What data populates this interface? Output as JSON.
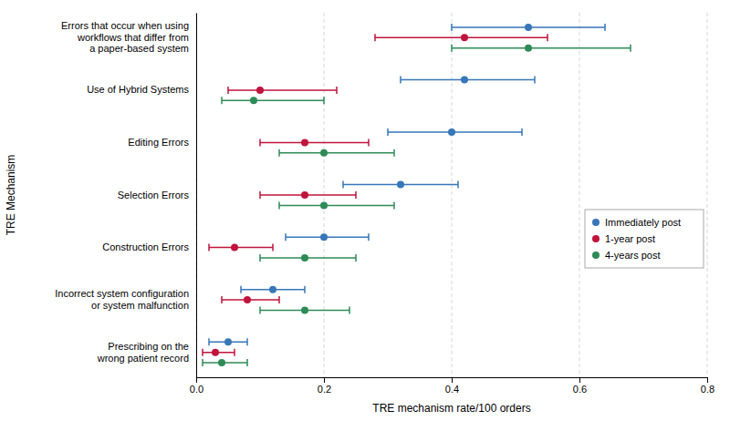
{
  "chart_data": {
    "type": "dot",
    "categories": [
      "Errors that occur when using\nworkflows that differ from\na paper-based system",
      "Use of Hybrid Systems",
      "Editing Errors",
      "Selection Errors",
      "Construction Errors",
      "Incorrect system configuration\nor system malfunction",
      "Prescribing on the\nwrong patient record"
    ],
    "series": [
      {
        "name": "Immediately post",
        "color": "#3777B8",
        "values": [
          0.52,
          0.42,
          0.4,
          0.32,
          0.2,
          0.12,
          0.05
        ],
        "ci_low": [
          0.4,
          0.32,
          0.3,
          0.23,
          0.14,
          0.07,
          0.02
        ],
        "ci_high": [
          0.64,
          0.53,
          0.51,
          0.41,
          0.27,
          0.17,
          0.08
        ]
      },
      {
        "name": "1-year post",
        "color": "#C0143C",
        "values": [
          0.42,
          0.1,
          0.17,
          0.17,
          0.06,
          0.08,
          0.03
        ],
        "ci_low": [
          0.28,
          0.05,
          0.1,
          0.1,
          0.02,
          0.04,
          0.01
        ],
        "ci_high": [
          0.55,
          0.22,
          0.27,
          0.25,
          0.12,
          0.13,
          0.06
        ]
      },
      {
        "name": "4-years post",
        "color": "#2E8B57",
        "values": [
          0.52,
          0.09,
          0.2,
          0.2,
          0.17,
          0.17,
          0.04
        ],
        "ci_low": [
          0.4,
          0.04,
          0.13,
          0.13,
          0.1,
          0.1,
          0.01
        ],
        "ci_high": [
          0.68,
          0.2,
          0.31,
          0.31,
          0.25,
          0.24,
          0.08
        ]
      }
    ],
    "xlabel": "TRE mechanism rate/100 orders",
    "ylabel": "TRE Mechanism",
    "xlim": [
      0.0,
      0.8
    ],
    "xticks": [
      {
        "value": 0,
        "label": "0.0"
      },
      0.2,
      0.4,
      0.6,
      0.8
    ],
    "grid": true,
    "legend": "right",
    "marker": "circle"
  }
}
